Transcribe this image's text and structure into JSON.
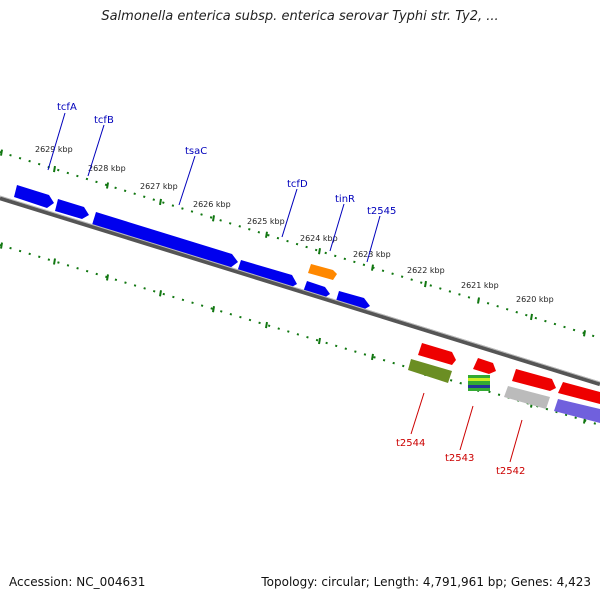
{
  "title": "Salmonella enterica subsp. enterica serovar Typhi str. Ty2, ...",
  "footer": {
    "accession": "Accession: NC_004631",
    "stats": "Topology: circular; Length: 4,791,961 bp; Genes: 4,423"
  },
  "colors": {
    "forward_gene": "#0000ee",
    "forward_label": "#0000bb",
    "reverse_gene": "#ee0000",
    "reverse_label": "#cc0000",
    "highlight_gene": "#ff8800",
    "olive_gene": "#6b8e23",
    "grey_gene": "#bbbbbb",
    "purple_gene": "#7060dd",
    "tick": "#117711",
    "backbone": "#777777"
  },
  "kbp_labels": [
    "2629 kbp",
    "2628 kbp",
    "2627 kbp",
    "2626 kbp",
    "2625 kbp",
    "2624 kbp",
    "2623 kbp",
    "2622 kbp",
    "2621 kbp",
    "2620 kbp"
  ],
  "forward_gene_labels": [
    "tcfA",
    "tcfB",
    "tsaC",
    "tcfD",
    "tinR",
    "t2545"
  ],
  "reverse_gene_labels": [
    "t2544",
    "t2543",
    "t2542"
  ]
}
